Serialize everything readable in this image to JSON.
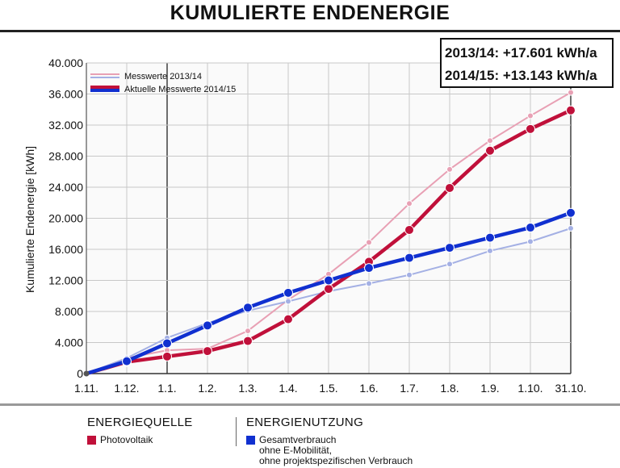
{
  "title": "KUMULIERTE ENDENERGIE",
  "summary": {
    "line1": "2013/14: +17.601 kWh/a",
    "line2": "2014/15: +13.143 kWh/a"
  },
  "bottom_legend": {
    "source_heading": "ENERGIEQUELLE",
    "source_item": "Photovoltaik",
    "source_color": "#c0103a",
    "usage_heading": "ENERGIENUTZUNG",
    "usage_item_line1": "Gesamtverbrauch",
    "usage_item_line2": "ohne E-Mobilität,",
    "usage_item_line3": "ohne projektspezifischen Verbrauch",
    "usage_color": "#1030d0"
  },
  "chart_data": {
    "type": "line",
    "ylabel": "Kumulierte Endenergie [kWh]",
    "xlabel": "",
    "categories": [
      "1.11.",
      "1.12.",
      "1.1.",
      "1.2.",
      "1.3.",
      "1.4.",
      "1.5.",
      "1.6.",
      "1.7.",
      "1.8.",
      "1.9.",
      "1.10.",
      "31.10."
    ],
    "yticks": [
      "0",
      "4.000",
      "8.000",
      "12.000",
      "16.000",
      "20.000",
      "24.000",
      "28.000",
      "32.000",
      "36.000",
      "40.000"
    ],
    "ylim": [
      0,
      40000
    ],
    "grid": true,
    "legend_position": "top-left",
    "series": [
      {
        "name": "Messwerte 2013/14",
        "style": "thin",
        "colors": [
          "#e8a0b4",
          "#a4b0e4"
        ],
        "lines": [
          [
            0,
            2000,
            3000,
            3200,
            5500,
            9500,
            12800,
            16900,
            21900,
            26300,
            30000,
            33200,
            36200
          ],
          [
            0,
            2000,
            4600,
            6500,
            8100,
            9300,
            10600,
            11600,
            12700,
            14100,
            15800,
            17000,
            18700
          ]
        ]
      },
      {
        "name": "Aktuelle Messwerte 2014/15",
        "style": "thick",
        "colors": [
          "#c0103a",
          "#1030d0"
        ],
        "lines": [
          [
            0,
            1500,
            2200,
            2900,
            4200,
            7000,
            10900,
            14400,
            18500,
            23900,
            28700,
            31500,
            33900
          ],
          [
            0,
            1600,
            3900,
            6200,
            8500,
            10400,
            12000,
            13600,
            14900,
            16200,
            17500,
            18800,
            20700
          ]
        ]
      }
    ]
  }
}
